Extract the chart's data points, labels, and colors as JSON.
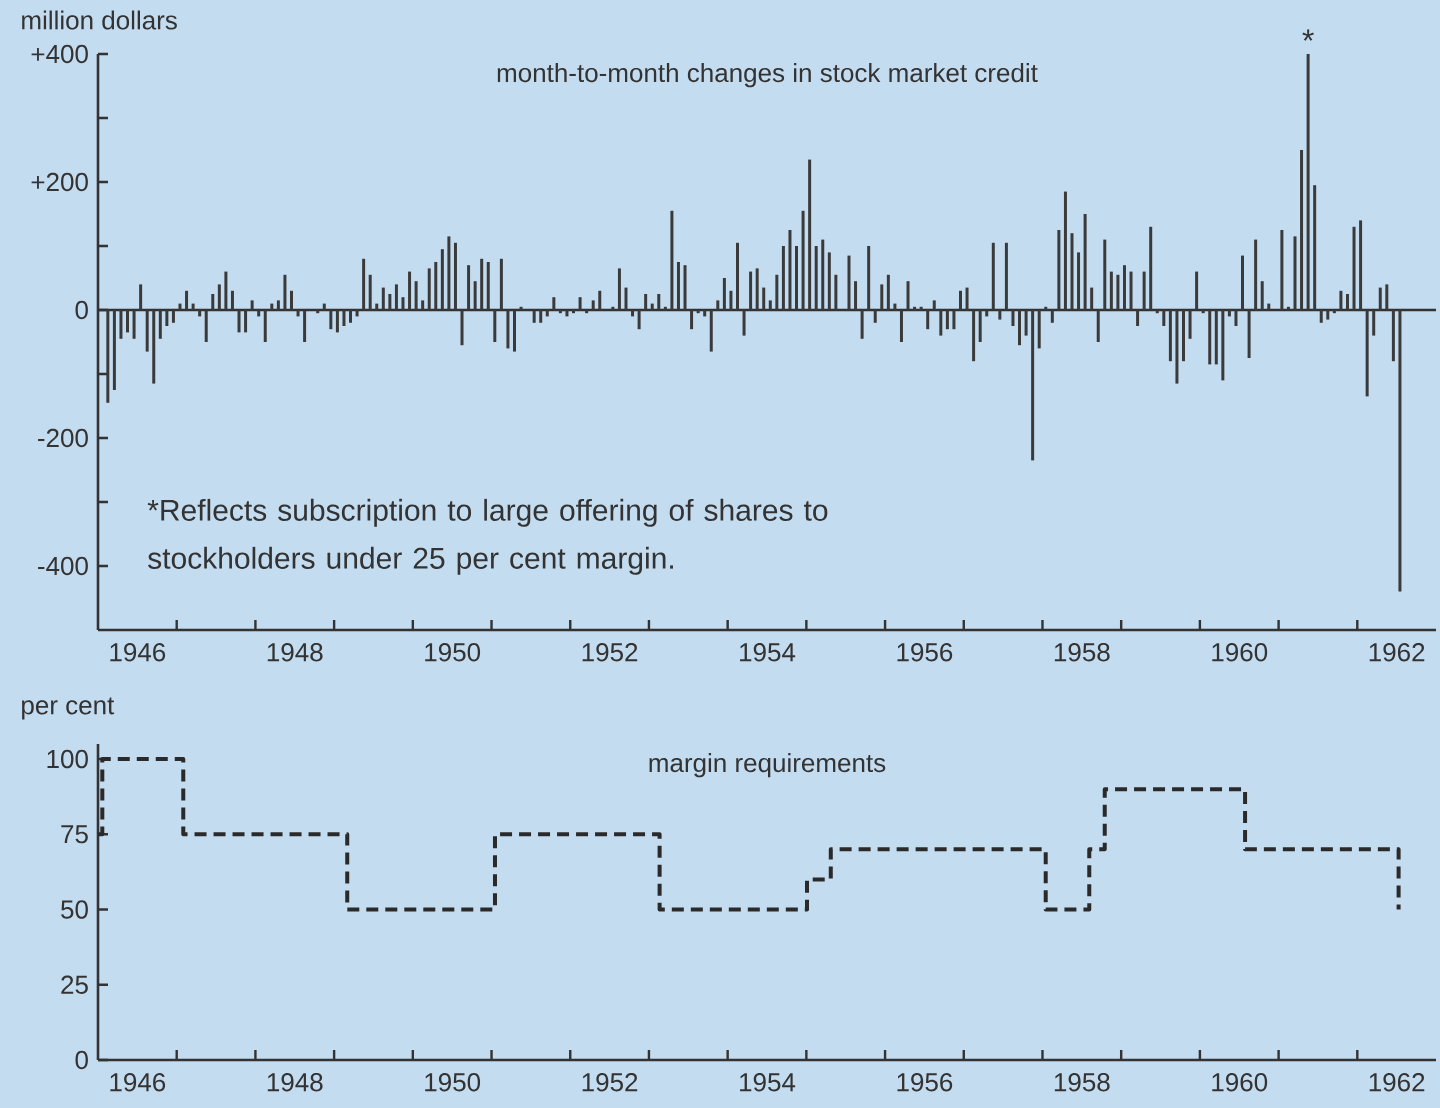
{
  "chart_data": [
    {
      "type": "bar",
      "title": "month-to-month changes in stock market credit",
      "ylabel": "million dollars",
      "color": "#3a3a3a",
      "x": [
        "1946-01",
        "1946-02",
        "1946-03",
        "1946-04",
        "1946-05",
        "1946-06",
        "1946-07",
        "1946-08",
        "1946-09",
        "1946-10",
        "1946-11",
        "1946-12",
        "1947-01",
        "1947-02",
        "1947-03",
        "1947-04",
        "1947-05",
        "1947-06",
        "1947-07",
        "1947-08",
        "1947-09",
        "1947-10",
        "1947-11",
        "1947-12",
        "1948-01",
        "1948-02",
        "1948-03",
        "1948-04",
        "1948-05",
        "1948-06",
        "1948-07",
        "1948-08",
        "1948-09",
        "1948-10",
        "1948-11",
        "1948-12",
        "1949-01",
        "1949-02",
        "1949-03",
        "1949-04",
        "1949-05",
        "1949-06",
        "1949-07",
        "1949-08",
        "1949-09",
        "1949-10",
        "1949-11",
        "1949-12",
        "1950-01",
        "1950-02",
        "1950-03",
        "1950-04",
        "1950-05",
        "1950-06",
        "1950-07",
        "1950-08",
        "1950-09",
        "1950-10",
        "1950-11",
        "1950-12",
        "1951-01",
        "1951-02",
        "1951-03",
        "1951-04",
        "1951-05",
        "1951-06",
        "1951-07",
        "1951-08",
        "1951-09",
        "1951-10",
        "1951-11",
        "1951-12",
        "1952-01",
        "1952-02",
        "1952-03",
        "1952-04",
        "1952-05",
        "1952-06",
        "1952-07",
        "1952-08",
        "1952-09",
        "1952-10",
        "1952-11",
        "1952-12",
        "1953-01",
        "1953-02",
        "1953-03",
        "1953-04",
        "1953-05",
        "1953-06",
        "1953-07",
        "1953-08",
        "1953-09",
        "1953-10",
        "1953-11",
        "1953-12",
        "1954-01",
        "1954-02",
        "1954-03",
        "1954-04",
        "1954-05",
        "1954-06",
        "1954-07",
        "1954-08",
        "1954-09",
        "1954-10",
        "1954-11",
        "1954-12",
        "1955-01",
        "1955-02",
        "1955-03",
        "1955-04",
        "1955-05",
        "1955-06",
        "1955-07",
        "1955-08",
        "1955-09",
        "1955-10",
        "1955-11",
        "1955-12",
        "1956-01",
        "1956-02",
        "1956-03",
        "1956-04",
        "1956-05",
        "1956-06",
        "1956-07",
        "1956-08",
        "1956-09",
        "1956-10",
        "1956-11",
        "1956-12",
        "1957-01",
        "1957-02",
        "1957-03",
        "1957-04",
        "1957-05",
        "1957-06",
        "1957-07",
        "1957-08",
        "1957-09",
        "1957-10",
        "1957-11",
        "1957-12",
        "1958-01",
        "1958-02",
        "1958-03",
        "1958-04",
        "1958-05",
        "1958-06",
        "1958-07",
        "1958-08",
        "1958-09",
        "1958-10",
        "1958-11",
        "1958-12",
        "1959-01",
        "1959-02",
        "1959-03",
        "1959-04",
        "1959-05",
        "1959-06",
        "1959-07",
        "1959-08",
        "1959-09",
        "1959-10",
        "1959-11",
        "1959-12",
        "1960-01",
        "1960-02",
        "1960-03",
        "1960-04",
        "1960-05",
        "1960-06",
        "1960-07",
        "1960-08",
        "1960-09",
        "1960-10",
        "1960-11",
        "1960-12",
        "1961-01",
        "1961-02",
        "1961-03",
        "1961-04",
        "1961-05",
        "1961-06",
        "1961-07",
        "1961-08",
        "1961-09",
        "1961-10",
        "1961-11",
        "1961-12",
        "1962-01",
        "1962-02",
        "1962-03",
        "1962-04",
        "1962-05",
        "1962-06",
        "1962-07"
      ],
      "values": [
        0,
        -145,
        -125,
        -45,
        -35,
        -45,
        40,
        -65,
        -115,
        -45,
        -25,
        -20,
        10,
        30,
        10,
        -10,
        -50,
        25,
        40,
        60,
        30,
        -35,
        -35,
        15,
        -10,
        -50,
        10,
        15,
        55,
        30,
        -10,
        -50,
        0,
        -5,
        10,
        -30,
        -35,
        -25,
        -20,
        -10,
        80,
        55,
        10,
        35,
        25,
        40,
        20,
        60,
        45,
        15,
        65,
        75,
        95,
        115,
        105,
        -55,
        70,
        45,
        80,
        75,
        -50,
        80,
        -60,
        -65,
        5,
        0,
        -20,
        -20,
        -10,
        20,
        -5,
        -10,
        -5,
        20,
        -5,
        15,
        30,
        0,
        5,
        65,
        35,
        -10,
        -30,
        25,
        10,
        25,
        5,
        155,
        75,
        70,
        -30,
        -5,
        -10,
        -65,
        15,
        50,
        30,
        105,
        -40,
        60,
        65,
        35,
        15,
        55,
        100,
        125,
        100,
        155,
        235,
        100,
        110,
        90,
        55,
        0,
        85,
        45,
        -45,
        100,
        -20,
        40,
        55,
        10,
        -50,
        45,
        5,
        5,
        -30,
        15,
        -40,
        -30,
        -30,
        30,
        35,
        -80,
        -50,
        -10,
        105,
        -15,
        105,
        -25,
        -55,
        -40,
        -235,
        -60,
        5,
        -20,
        125,
        185,
        120,
        90,
        150,
        35,
        -50,
        110,
        60,
        55,
        70,
        60,
        -25,
        60,
        130,
        -5,
        -25,
        -80,
        -115,
        -80,
        -45,
        60,
        -5,
        -85,
        -85,
        -110,
        -10,
        -25,
        85,
        -75,
        110,
        45,
        10,
        0,
        125,
        5,
        115,
        250,
        400,
        195,
        -20,
        -15,
        -5,
        30,
        25,
        130,
        140,
        -135,
        -40,
        35,
        40,
        -80,
        -440
      ],
      "xlim": [
        "1946-01",
        "1963-01"
      ],
      "ylim": [
        -500,
        400
      ],
      "xticks": [
        {
          "value": "1946-07",
          "label": "1946"
        },
        {
          "value": "1947",
          "label": null
        },
        {
          "value": "1948",
          "label": null
        },
        {
          "value": "1948-07",
          "label": "1948"
        },
        {
          "value": "1949",
          "label": null
        },
        {
          "value": "1950",
          "label": null
        },
        {
          "value": "1950-07",
          "label": "1950"
        },
        {
          "value": "1951",
          "label": null
        },
        {
          "value": "1952",
          "label": null
        },
        {
          "value": "1952-07",
          "label": "1952"
        },
        {
          "value": "1953",
          "label": null
        },
        {
          "value": "1954",
          "label": null
        },
        {
          "value": "1954-07",
          "label": "1954"
        },
        {
          "value": "1955",
          "label": null
        },
        {
          "value": "1956",
          "label": null
        },
        {
          "value": "1956-07",
          "label": "1956"
        },
        {
          "value": "1957",
          "label": null
        },
        {
          "value": "1958",
          "label": null
        },
        {
          "value": "1958-07",
          "label": "1958"
        },
        {
          "value": "1959",
          "label": null
        },
        {
          "value": "1960",
          "label": null
        },
        {
          "value": "1960-07",
          "label": "1960"
        },
        {
          "value": "1961",
          "label": null
        },
        {
          "value": "1962",
          "label": null
        },
        {
          "value": "1962-07",
          "label": "1962"
        }
      ],
      "yticks": [
        {
          "value": -400,
          "label": "-400"
        },
        {
          "value": -300,
          "label": null
        },
        {
          "value": -200,
          "label": "-200"
        },
        {
          "value": -100,
          "label": null
        },
        0,
        {
          "value": 100,
          "label": null
        },
        {
          "value": 200,
          "label": "+200"
        },
        {
          "value": 300,
          "label": null
        },
        {
          "value": 400,
          "label": "+400"
        }
      ],
      "ref_lines": [
        {
          "axis": "y",
          "value": 0
        }
      ],
      "annotations": [
        "*Reflects subscription to large offering of shares to stockholders under 25 per cent margin.",
        {
          "text": "*",
          "x": "1961-05",
          "y": 400
        }
      ]
    },
    {
      "type": "step",
      "title": "margin requirements",
      "ylabel": "per cent",
      "color": "#2a2a2a",
      "line_style": "dashed",
      "x": [
        "1946-01-01",
        "1946-01-21",
        "1947-02-01",
        "1949-03-01",
        "1951-01-17",
        "1953-02-20",
        "1955-01-04",
        "1955-04-23",
        "1958-01-16",
        "1958-08-05",
        "1958-10-16",
        "1960-07-28",
        "1962-07-10"
      ],
      "values": [
        75,
        100,
        75,
        50,
        75,
        50,
        60,
        70,
        50,
        70,
        90,
        70,
        50
      ],
      "xlim": [
        "1946-01",
        "1963-01"
      ],
      "ylim": [
        0,
        105
      ],
      "xticks": [
        {
          "value": "1946-07",
          "label": "1946"
        },
        {
          "value": "1947",
          "label": null
        },
        {
          "value": "1948",
          "label": null
        },
        {
          "value": "1948-07",
          "label": "1948"
        },
        {
          "value": "1949",
          "label": null
        },
        {
          "value": "1950",
          "label": null
        },
        {
          "value": "1950-07",
          "label": "1950"
        },
        {
          "value": "1951",
          "label": null
        },
        {
          "value": "1952",
          "label": null
        },
        {
          "value": "1952-07",
          "label": "1952"
        },
        {
          "value": "1953",
          "label": null
        },
        {
          "value": "1954",
          "label": null
        },
        {
          "value": "1954-07",
          "label": "1954"
        },
        {
          "value": "1955",
          "label": null
        },
        {
          "value": "1956",
          "label": null
        },
        {
          "value": "1956-07",
          "label": "1956"
        },
        {
          "value": "1957",
          "label": null
        },
        {
          "value": "1958",
          "label": null
        },
        {
          "value": "1958-07",
          "label": "1958"
        },
        {
          "value": "1959",
          "label": null
        },
        {
          "value": "1960",
          "label": null
        },
        {
          "value": "1960-07",
          "label": "1960"
        },
        {
          "value": "1961",
          "label": null
        },
        {
          "value": "1962",
          "label": null
        },
        {
          "value": "1962-07",
          "label": "1962"
        }
      ],
      "yticks": [
        0,
        25,
        50,
        75,
        100
      ]
    }
  ]
}
